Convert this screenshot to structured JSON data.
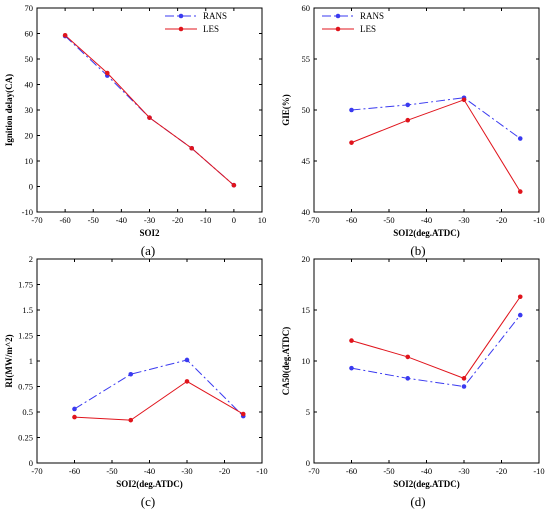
{
  "colors": {
    "rans": "#3a3af0",
    "les": "#e0141c"
  },
  "chart_data": [
    {
      "type": "line",
      "panel_label": "(a)",
      "xlabel": "SOI2",
      "ylabel": "Ignition delay(CA)",
      "xlim": [
        -70,
        10
      ],
      "ylim": [
        -10,
        70
      ],
      "xticks": [
        -70,
        -60,
        -50,
        -40,
        -30,
        -20,
        -10,
        0,
        10
      ],
      "yticks": [
        -10,
        0,
        10,
        20,
        30,
        40,
        50,
        60,
        70
      ],
      "grid": false,
      "legend_position": "top-right",
      "series": [
        {
          "name": "RANS",
          "style": "dashed",
          "x": [
            -60,
            -45,
            -30,
            -15,
            0
          ],
          "y": [
            59,
            43.5,
            27,
            15,
            0.5
          ]
        },
        {
          "name": "LES",
          "style": "solid",
          "x": [
            -60,
            -45,
            -30,
            -15,
            0
          ],
          "y": [
            59.3,
            44.5,
            27,
            15,
            0.5
          ]
        }
      ]
    },
    {
      "type": "line",
      "panel_label": "(b)",
      "xlabel": "SOI2(deg.ATDC)",
      "ylabel": "GIE(%)",
      "xlim": [
        -70,
        -10
      ],
      "ylim": [
        40,
        60
      ],
      "xticks": [
        -70,
        -60,
        -50,
        -40,
        -30,
        -20,
        -10
      ],
      "yticks": [
        40,
        45,
        50,
        55,
        60
      ],
      "grid": false,
      "legend_position": "top-left",
      "series": [
        {
          "name": "RANS",
          "style": "dashed",
          "x": [
            -60,
            -45,
            -30,
            -15
          ],
          "y": [
            50,
            50.5,
            51.2,
            47.2
          ]
        },
        {
          "name": "LES",
          "style": "solid",
          "x": [
            -60,
            -45,
            -30,
            -15
          ],
          "y": [
            46.8,
            49,
            51,
            42
          ]
        }
      ]
    },
    {
      "type": "line",
      "panel_label": "(c)",
      "xlabel": "SOI2(deg.ATDC)",
      "ylabel": "RI(MW/m^2)",
      "xlim": [
        -70,
        -10
      ],
      "ylim": [
        0,
        2
      ],
      "xticks": [
        -70,
        -60,
        -50,
        -40,
        -30,
        -20,
        -10
      ],
      "yticks": [
        0,
        0.25,
        0.5,
        0.75,
        1,
        1.25,
        1.5,
        1.75,
        2
      ],
      "ytick_labels": [
        "0",
        "0.25",
        "0.5",
        "0.75",
        "1",
        "1.25",
        "1.5",
        "1.75",
        "2"
      ],
      "grid": false,
      "series": [
        {
          "name": "RANS",
          "style": "dashed",
          "x": [
            -60,
            -45,
            -30,
            -15
          ],
          "y": [
            0.53,
            0.87,
            1.01,
            0.46
          ]
        },
        {
          "name": "LES",
          "style": "solid",
          "x": [
            -60,
            -45,
            -30,
            -15
          ],
          "y": [
            0.45,
            0.42,
            0.8,
            0.48
          ]
        }
      ]
    },
    {
      "type": "line",
      "panel_label": "(d)",
      "xlabel": "SOI2(deg.ATDC)",
      "ylabel": "CA50(deg.ATDC)",
      "xlim": [
        -70,
        -10
      ],
      "ylim": [
        0,
        20
      ],
      "xticks": [
        -70,
        -60,
        -50,
        -40,
        -30,
        -20,
        -10
      ],
      "yticks": [
        0,
        5,
        10,
        15,
        20
      ],
      "grid": false,
      "series": [
        {
          "name": "RANS",
          "style": "dashed",
          "x": [
            -60,
            -45,
            -30,
            -15
          ],
          "y": [
            9.3,
            8.3,
            7.5,
            14.5
          ]
        },
        {
          "name": "LES",
          "style": "solid",
          "x": [
            -60,
            -45,
            -30,
            -15
          ],
          "y": [
            12,
            10.4,
            8.3,
            16.3
          ]
        }
      ]
    }
  ]
}
